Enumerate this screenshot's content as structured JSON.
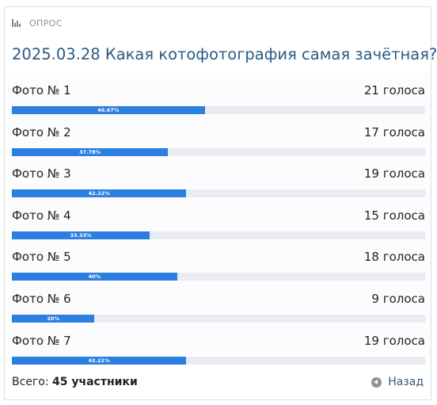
{
  "header": {
    "label": "ОПРОС",
    "icon": "bar-chart-icon"
  },
  "poll": {
    "title": "2025.03.28 Какая котофотография самая зачётная?",
    "options": [
      {
        "label": "Фото № 1",
        "votes": "21 голоса",
        "percent_label": "46.67%",
        "percent": 46.67
      },
      {
        "label": "Фото № 2",
        "votes": "17 голоса",
        "percent_label": "37.78%",
        "percent": 37.78
      },
      {
        "label": "Фото № 3",
        "votes": "19 голоса",
        "percent_label": "42.22%",
        "percent": 42.22
      },
      {
        "label": "Фото № 4",
        "votes": "15 голоса",
        "percent_label": "33.33%",
        "percent": 33.33
      },
      {
        "label": "Фото № 5",
        "votes": "18 голоса",
        "percent_label": "40%",
        "percent": 40
      },
      {
        "label": "Фото № 6",
        "votes": "9 голоса",
        "percent_label": "20%",
        "percent": 20
      },
      {
        "label": "Фото № 7",
        "votes": "19 голоса",
        "percent_label": "42.22%",
        "percent": 42.22
      }
    ]
  },
  "footer": {
    "total_prefix": "Всего:",
    "total_value": "45 участники",
    "back_label": "Назад",
    "back_icon": "circle-arrow-left-icon"
  },
  "colors": {
    "accent": "#2b7fe0",
    "title": "#2c5a85",
    "track": "#e8ebef"
  }
}
